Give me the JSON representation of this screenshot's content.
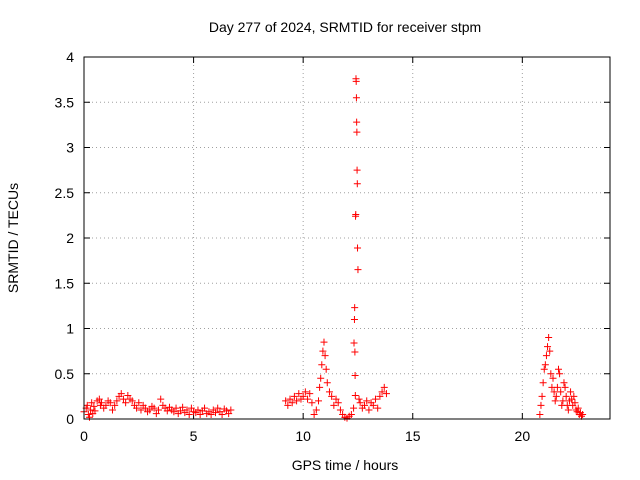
{
  "chart_data": {
    "type": "scatter",
    "title": "Day 277 of 2024, SRMTID for receiver stpm",
    "xlabel": "GPS time / hours",
    "ylabel": "SRMTID / TECUs",
    "xlim": [
      0,
      24
    ],
    "ylim": [
      0,
      4
    ],
    "xticks": [
      0,
      5,
      10,
      15,
      20
    ],
    "xtick_labels": [
      "0",
      "5",
      "10",
      "15",
      "20"
    ],
    "yticks": [
      0,
      0.5,
      1,
      1.5,
      2,
      2.5,
      3,
      3.5,
      4
    ],
    "ytick_labels": [
      "0",
      "0.5",
      "1",
      "1.5",
      "2",
      "2.5",
      "3",
      "3.5",
      "4"
    ],
    "grid": true,
    "marker": "+",
    "color": "#ff0000",
    "series": [
      {
        "name": "SRMTID",
        "x": [
          0.0,
          0.1,
          0.15,
          0.2,
          0.25,
          0.3,
          0.35,
          0.4,
          0.45,
          0.5,
          0.6,
          0.7,
          0.75,
          0.8,
          0.9,
          1.0,
          1.1,
          1.2,
          1.3,
          1.4,
          1.5,
          1.6,
          1.7,
          1.8,
          1.9,
          2.0,
          2.1,
          2.2,
          2.3,
          2.4,
          2.5,
          2.6,
          2.7,
          2.8,
          2.9,
          3.0,
          3.1,
          3.2,
          3.3,
          3.4,
          3.5,
          3.6,
          3.7,
          3.8,
          3.9,
          4.0,
          4.1,
          4.2,
          4.3,
          4.4,
          4.5,
          4.6,
          4.7,
          4.8,
          4.9,
          5.0,
          5.1,
          5.2,
          5.3,
          5.4,
          5.5,
          5.6,
          5.7,
          5.8,
          5.9,
          6.0,
          6.1,
          6.2,
          6.3,
          6.4,
          6.5,
          6.6,
          6.7,
          9.2,
          9.3,
          9.4,
          9.5,
          9.6,
          9.7,
          9.8,
          9.9,
          10.0,
          10.1,
          10.2,
          10.3,
          10.4,
          10.5,
          10.6,
          10.7,
          10.75,
          10.8,
          10.85,
          10.9,
          10.95,
          11.0,
          11.05,
          11.1,
          11.2,
          11.3,
          11.4,
          11.5,
          11.6,
          11.7,
          11.8,
          11.9,
          12.0,
          12.1,
          12.2,
          12.3,
          12.32,
          12.34,
          12.35,
          12.36,
          12.37,
          12.38,
          12.39,
          12.4,
          12.41,
          12.42,
          12.43,
          12.44,
          12.45,
          12.46,
          12.47,
          12.48,
          12.5,
          12.55,
          12.6,
          12.7,
          12.8,
          12.9,
          13.0,
          13.1,
          13.2,
          13.3,
          13.4,
          13.5,
          13.6,
          13.7,
          13.8,
          20.8,
          20.85,
          20.9,
          20.95,
          21.0,
          21.05,
          21.1,
          21.15,
          21.2,
          21.25,
          21.3,
          21.35,
          21.4,
          21.45,
          21.5,
          21.55,
          21.6,
          21.65,
          21.7,
          21.75,
          21.8,
          21.85,
          21.9,
          21.95,
          22.0,
          22.05,
          22.1,
          22.15,
          22.2,
          22.25,
          22.3,
          22.35,
          22.4,
          22.45,
          22.5,
          22.55,
          22.6,
          22.65,
          22.7,
          22.75
        ],
        "y": [
          0.08,
          0.12,
          0.15,
          0.05,
          0.02,
          0.1,
          0.18,
          0.06,
          0.14,
          0.09,
          0.2,
          0.22,
          0.15,
          0.18,
          0.12,
          0.15,
          0.2,
          0.18,
          0.1,
          0.15,
          0.2,
          0.25,
          0.28,
          0.22,
          0.18,
          0.26,
          0.22,
          0.2,
          0.15,
          0.12,
          0.18,
          0.1,
          0.15,
          0.12,
          0.08,
          0.1,
          0.14,
          0.12,
          0.06,
          0.1,
          0.22,
          0.15,
          0.12,
          0.09,
          0.13,
          0.1,
          0.08,
          0.12,
          0.06,
          0.09,
          0.13,
          0.07,
          0.1,
          0.05,
          0.12,
          0.08,
          0.07,
          0.1,
          0.05,
          0.09,
          0.12,
          0.06,
          0.08,
          0.05,
          0.1,
          0.07,
          0.12,
          0.08,
          0.05,
          0.11,
          0.09,
          0.06,
          0.1,
          0.2,
          0.15,
          0.22,
          0.18,
          0.25,
          0.2,
          0.28,
          0.22,
          0.25,
          0.3,
          0.22,
          0.28,
          0.18,
          0.05,
          0.1,
          0.2,
          0.35,
          0.45,
          0.6,
          0.75,
          0.85,
          0.7,
          0.55,
          0.4,
          0.3,
          0.25,
          0.15,
          0.22,
          0.18,
          0.1,
          0.05,
          0.02,
          0.01,
          0.03,
          0.05,
          0.12,
          0.84,
          1.1,
          1.23,
          0.74,
          0.48,
          0.26,
          2.24,
          2.26,
          3.76,
          3.73,
          3.55,
          3.28,
          3.17,
          2.75,
          2.6,
          1.89,
          1.65,
          0.22,
          0.18,
          0.12,
          0.15,
          0.2,
          0.1,
          0.18,
          0.15,
          0.22,
          0.12,
          0.25,
          0.3,
          0.35,
          0.28,
          0.05,
          0.15,
          0.25,
          0.4,
          0.55,
          0.6,
          0.7,
          0.8,
          0.9,
          0.75,
          0.5,
          0.35,
          0.45,
          0.3,
          0.2,
          0.25,
          0.35,
          0.55,
          0.5,
          0.3,
          0.15,
          0.2,
          0.4,
          0.35,
          0.25,
          0.15,
          0.1,
          0.2,
          0.3,
          0.22,
          0.15,
          0.25,
          0.18,
          0.1,
          0.08,
          0.12,
          0.05,
          0.07,
          0.03,
          0.05
        ]
      }
    ]
  }
}
